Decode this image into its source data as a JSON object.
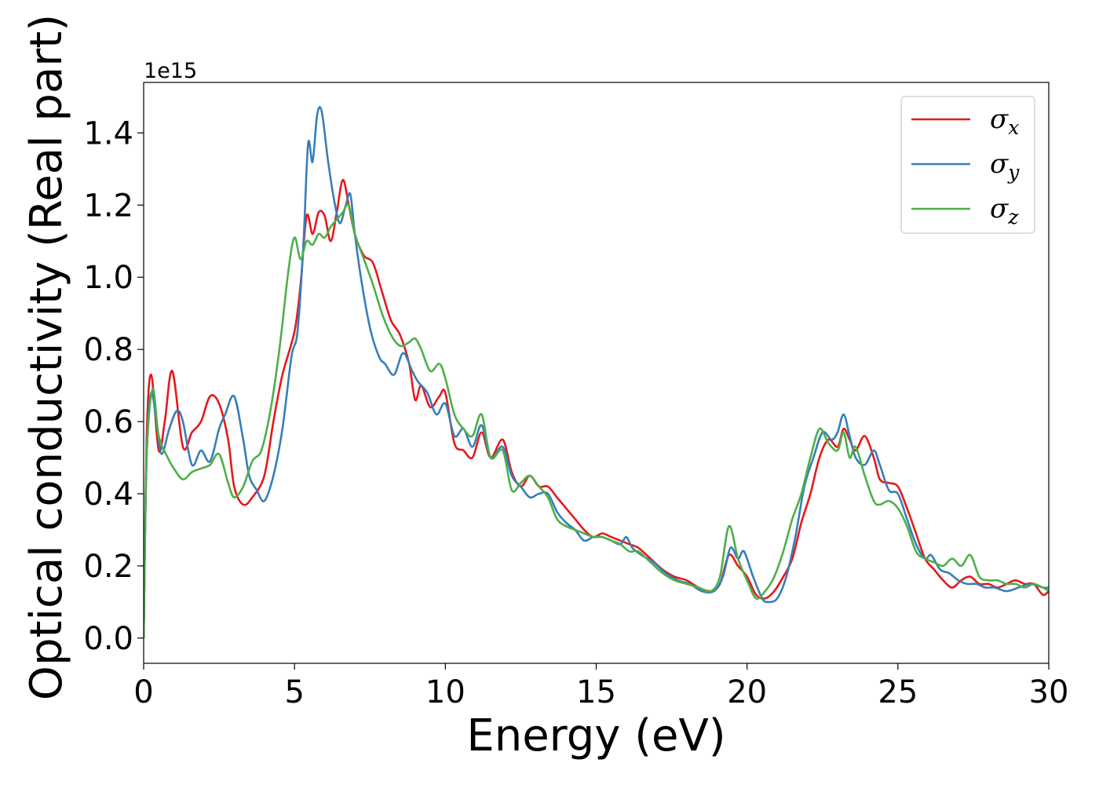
{
  "chart_data": {
    "type": "line",
    "xlabel": "Energy (eV)",
    "ylabel": "Optical conductivity (Real part)",
    "y_offset_text": "1e15",
    "y_multiplier": 1000000000000000.0,
    "xlim": [
      0,
      30
    ],
    "ylim": [
      -0.07,
      1.54
    ],
    "x_ticks": [
      0,
      5,
      10,
      15,
      20,
      25,
      30
    ],
    "x_tick_labels": [
      "0",
      "5",
      "10",
      "15",
      "20",
      "25",
      "30"
    ],
    "y_ticks": [
      0.0,
      0.2,
      0.4,
      0.6,
      0.8,
      1.0,
      1.2,
      1.4
    ],
    "y_tick_labels": [
      "0.0",
      "0.2",
      "0.4",
      "0.6",
      "0.8",
      "1.0",
      "1.2",
      "1.4"
    ],
    "grid": false,
    "legend_position": "top-right",
    "series": [
      {
        "name": "σx",
        "symbol": "σ",
        "subscript": "x",
        "color": "#e41a1c",
        "x": [
          0,
          0.1,
          0.25,
          0.5,
          0.7,
          0.95,
          1.3,
          1.6,
          1.9,
          2.2,
          2.5,
          2.8,
          3.0,
          3.3,
          3.6,
          4.0,
          4.3,
          4.6,
          5.0,
          5.2,
          5.4,
          5.6,
          5.8,
          6.0,
          6.2,
          6.4,
          6.6,
          6.8,
          7.0,
          7.3,
          7.6,
          7.9,
          8.2,
          8.5,
          8.8,
          9.0,
          9.2,
          9.5,
          9.8,
          10.0,
          10.3,
          10.6,
          10.9,
          11.2,
          11.5,
          11.9,
          12.2,
          12.5,
          12.8,
          13.1,
          13.4,
          13.7,
          14.0,
          14.3,
          14.6,
          14.9,
          15.2,
          15.5,
          15.8,
          16.1,
          16.4,
          16.8,
          17.2,
          17.6,
          18.0,
          18.4,
          18.8,
          19.1,
          19.4,
          19.7,
          20.0,
          20.3,
          20.6,
          20.9,
          21.2,
          21.5,
          21.8,
          22.1,
          22.4,
          22.7,
          23.0,
          23.2,
          23.4,
          23.6,
          23.9,
          24.2,
          24.4,
          24.7,
          25.0,
          25.3,
          25.6,
          25.9,
          26.2,
          26.5,
          26.8,
          27.1,
          27.4,
          27.7,
          28.0,
          28.3,
          28.6,
          28.9,
          29.2,
          29.5,
          29.8,
          30.0
        ],
        "y": [
          0.0,
          0.55,
          0.73,
          0.52,
          0.6,
          0.74,
          0.53,
          0.57,
          0.6,
          0.67,
          0.65,
          0.55,
          0.42,
          0.37,
          0.39,
          0.45,
          0.6,
          0.73,
          0.85,
          0.98,
          1.17,
          1.12,
          1.18,
          1.17,
          1.1,
          1.18,
          1.27,
          1.2,
          1.12,
          1.06,
          1.04,
          0.96,
          0.88,
          0.84,
          0.76,
          0.66,
          0.7,
          0.64,
          0.67,
          0.68,
          0.54,
          0.52,
          0.5,
          0.57,
          0.5,
          0.55,
          0.46,
          0.42,
          0.45,
          0.42,
          0.42,
          0.39,
          0.36,
          0.33,
          0.3,
          0.28,
          0.29,
          0.28,
          0.27,
          0.26,
          0.25,
          0.22,
          0.19,
          0.17,
          0.16,
          0.14,
          0.13,
          0.15,
          0.23,
          0.2,
          0.17,
          0.12,
          0.11,
          0.13,
          0.17,
          0.22,
          0.32,
          0.4,
          0.5,
          0.55,
          0.53,
          0.58,
          0.55,
          0.52,
          0.56,
          0.5,
          0.44,
          0.43,
          0.42,
          0.36,
          0.29,
          0.22,
          0.19,
          0.16,
          0.14,
          0.16,
          0.17,
          0.15,
          0.15,
          0.14,
          0.15,
          0.16,
          0.15,
          0.15,
          0.12,
          0.13
        ]
      },
      {
        "name": "σy",
        "symbol": "σ",
        "subscript": "y",
        "color": "#377eb8",
        "x": [
          0,
          0.1,
          0.25,
          0.45,
          0.6,
          0.85,
          1.1,
          1.3,
          1.6,
          1.9,
          2.2,
          2.5,
          2.7,
          3.0,
          3.3,
          3.5,
          3.75,
          4.0,
          4.3,
          4.6,
          4.9,
          5.1,
          5.3,
          5.45,
          5.6,
          5.75,
          5.9,
          6.1,
          6.3,
          6.5,
          6.7,
          6.85,
          7.0,
          7.2,
          7.5,
          7.8,
          8.0,
          8.3,
          8.6,
          8.9,
          9.1,
          9.4,
          9.7,
          10.0,
          10.3,
          10.6,
          10.9,
          11.2,
          11.5,
          11.9,
          12.2,
          12.5,
          12.8,
          13.1,
          13.4,
          13.7,
          14.0,
          14.3,
          14.6,
          14.9,
          15.2,
          15.5,
          15.8,
          16.0,
          16.2,
          16.5,
          16.9,
          17.3,
          17.7,
          18.1,
          18.5,
          18.9,
          19.2,
          19.45,
          19.7,
          19.9,
          20.2,
          20.5,
          20.7,
          21.0,
          21.3,
          21.6,
          21.9,
          22.2,
          22.5,
          22.8,
          23.0,
          23.2,
          23.4,
          23.6,
          23.9,
          24.2,
          24.4,
          24.7,
          25.0,
          25.3,
          25.6,
          25.9,
          26.1,
          26.4,
          26.7,
          27.0,
          27.3,
          27.6,
          27.9,
          28.2,
          28.6,
          29.0,
          29.4,
          29.8,
          30.0
        ],
        "y": [
          0.0,
          0.5,
          0.68,
          0.58,
          0.51,
          0.58,
          0.63,
          0.6,
          0.48,
          0.52,
          0.49,
          0.58,
          0.62,
          0.67,
          0.55,
          0.45,
          0.41,
          0.38,
          0.45,
          0.58,
          0.78,
          0.85,
          1.1,
          1.37,
          1.32,
          1.45,
          1.46,
          1.33,
          1.22,
          1.15,
          1.2,
          1.23,
          1.12,
          1.0,
          0.86,
          0.78,
          0.76,
          0.73,
          0.79,
          0.74,
          0.71,
          0.68,
          0.62,
          0.65,
          0.56,
          0.58,
          0.53,
          0.59,
          0.5,
          0.53,
          0.45,
          0.42,
          0.39,
          0.4,
          0.4,
          0.35,
          0.32,
          0.3,
          0.27,
          0.28,
          0.28,
          0.27,
          0.26,
          0.28,
          0.25,
          0.23,
          0.21,
          0.18,
          0.16,
          0.15,
          0.13,
          0.13,
          0.17,
          0.25,
          0.22,
          0.24,
          0.17,
          0.11,
          0.1,
          0.11,
          0.17,
          0.28,
          0.42,
          0.5,
          0.57,
          0.55,
          0.57,
          0.62,
          0.56,
          0.5,
          0.48,
          0.52,
          0.48,
          0.41,
          0.4,
          0.33,
          0.26,
          0.22,
          0.23,
          0.19,
          0.18,
          0.16,
          0.15,
          0.15,
          0.14,
          0.14,
          0.13,
          0.14,
          0.15,
          0.14,
          0.14
        ]
      },
      {
        "name": "σz",
        "symbol": "σ",
        "subscript": "z",
        "color": "#4daf4a",
        "x": [
          0,
          0.1,
          0.3,
          0.5,
          0.8,
          1.0,
          1.3,
          1.6,
          1.9,
          2.2,
          2.5,
          2.8,
          3.0,
          3.3,
          3.6,
          3.9,
          4.2,
          4.5,
          4.8,
          5.0,
          5.2,
          5.4,
          5.6,
          5.8,
          6.0,
          6.2,
          6.4,
          6.6,
          6.8,
          7.0,
          7.3,
          7.6,
          7.9,
          8.2,
          8.5,
          8.8,
          9.0,
          9.2,
          9.5,
          9.8,
          10.0,
          10.3,
          10.6,
          10.9,
          11.2,
          11.5,
          11.9,
          12.2,
          12.5,
          12.8,
          13.1,
          13.4,
          13.7,
          14.0,
          14.3,
          14.6,
          14.9,
          15.2,
          15.5,
          15.8,
          16.1,
          16.4,
          16.8,
          17.2,
          17.6,
          18.0,
          18.4,
          18.8,
          19.1,
          19.4,
          19.7,
          20.0,
          20.3,
          20.6,
          20.9,
          21.2,
          21.5,
          21.8,
          22.1,
          22.4,
          22.7,
          23.0,
          23.2,
          23.4,
          23.6,
          23.9,
          24.2,
          24.4,
          24.7,
          25.0,
          25.3,
          25.6,
          25.9,
          26.2,
          26.5,
          26.8,
          27.1,
          27.4,
          27.7,
          28.0,
          28.3,
          28.6,
          28.9,
          29.2,
          29.5,
          29.8,
          30.0
        ],
        "y": [
          0.0,
          0.5,
          0.69,
          0.56,
          0.5,
          0.47,
          0.44,
          0.46,
          0.47,
          0.48,
          0.51,
          0.43,
          0.39,
          0.42,
          0.49,
          0.52,
          0.63,
          0.8,
          1.02,
          1.11,
          1.05,
          1.1,
          1.09,
          1.12,
          1.11,
          1.14,
          1.16,
          1.18,
          1.2,
          1.12,
          1.05,
          0.98,
          0.9,
          0.84,
          0.81,
          0.82,
          0.83,
          0.8,
          0.74,
          0.76,
          0.72,
          0.62,
          0.58,
          0.56,
          0.62,
          0.5,
          0.52,
          0.41,
          0.43,
          0.45,
          0.42,
          0.39,
          0.33,
          0.31,
          0.3,
          0.29,
          0.28,
          0.28,
          0.27,
          0.26,
          0.24,
          0.24,
          0.21,
          0.18,
          0.16,
          0.15,
          0.14,
          0.13,
          0.17,
          0.31,
          0.22,
          0.16,
          0.11,
          0.13,
          0.17,
          0.24,
          0.33,
          0.4,
          0.5,
          0.58,
          0.54,
          0.52,
          0.57,
          0.5,
          0.53,
          0.45,
          0.38,
          0.37,
          0.38,
          0.36,
          0.31,
          0.24,
          0.22,
          0.21,
          0.2,
          0.22,
          0.2,
          0.23,
          0.17,
          0.16,
          0.16,
          0.15,
          0.15,
          0.14,
          0.15,
          0.14,
          0.13
        ]
      }
    ]
  }
}
